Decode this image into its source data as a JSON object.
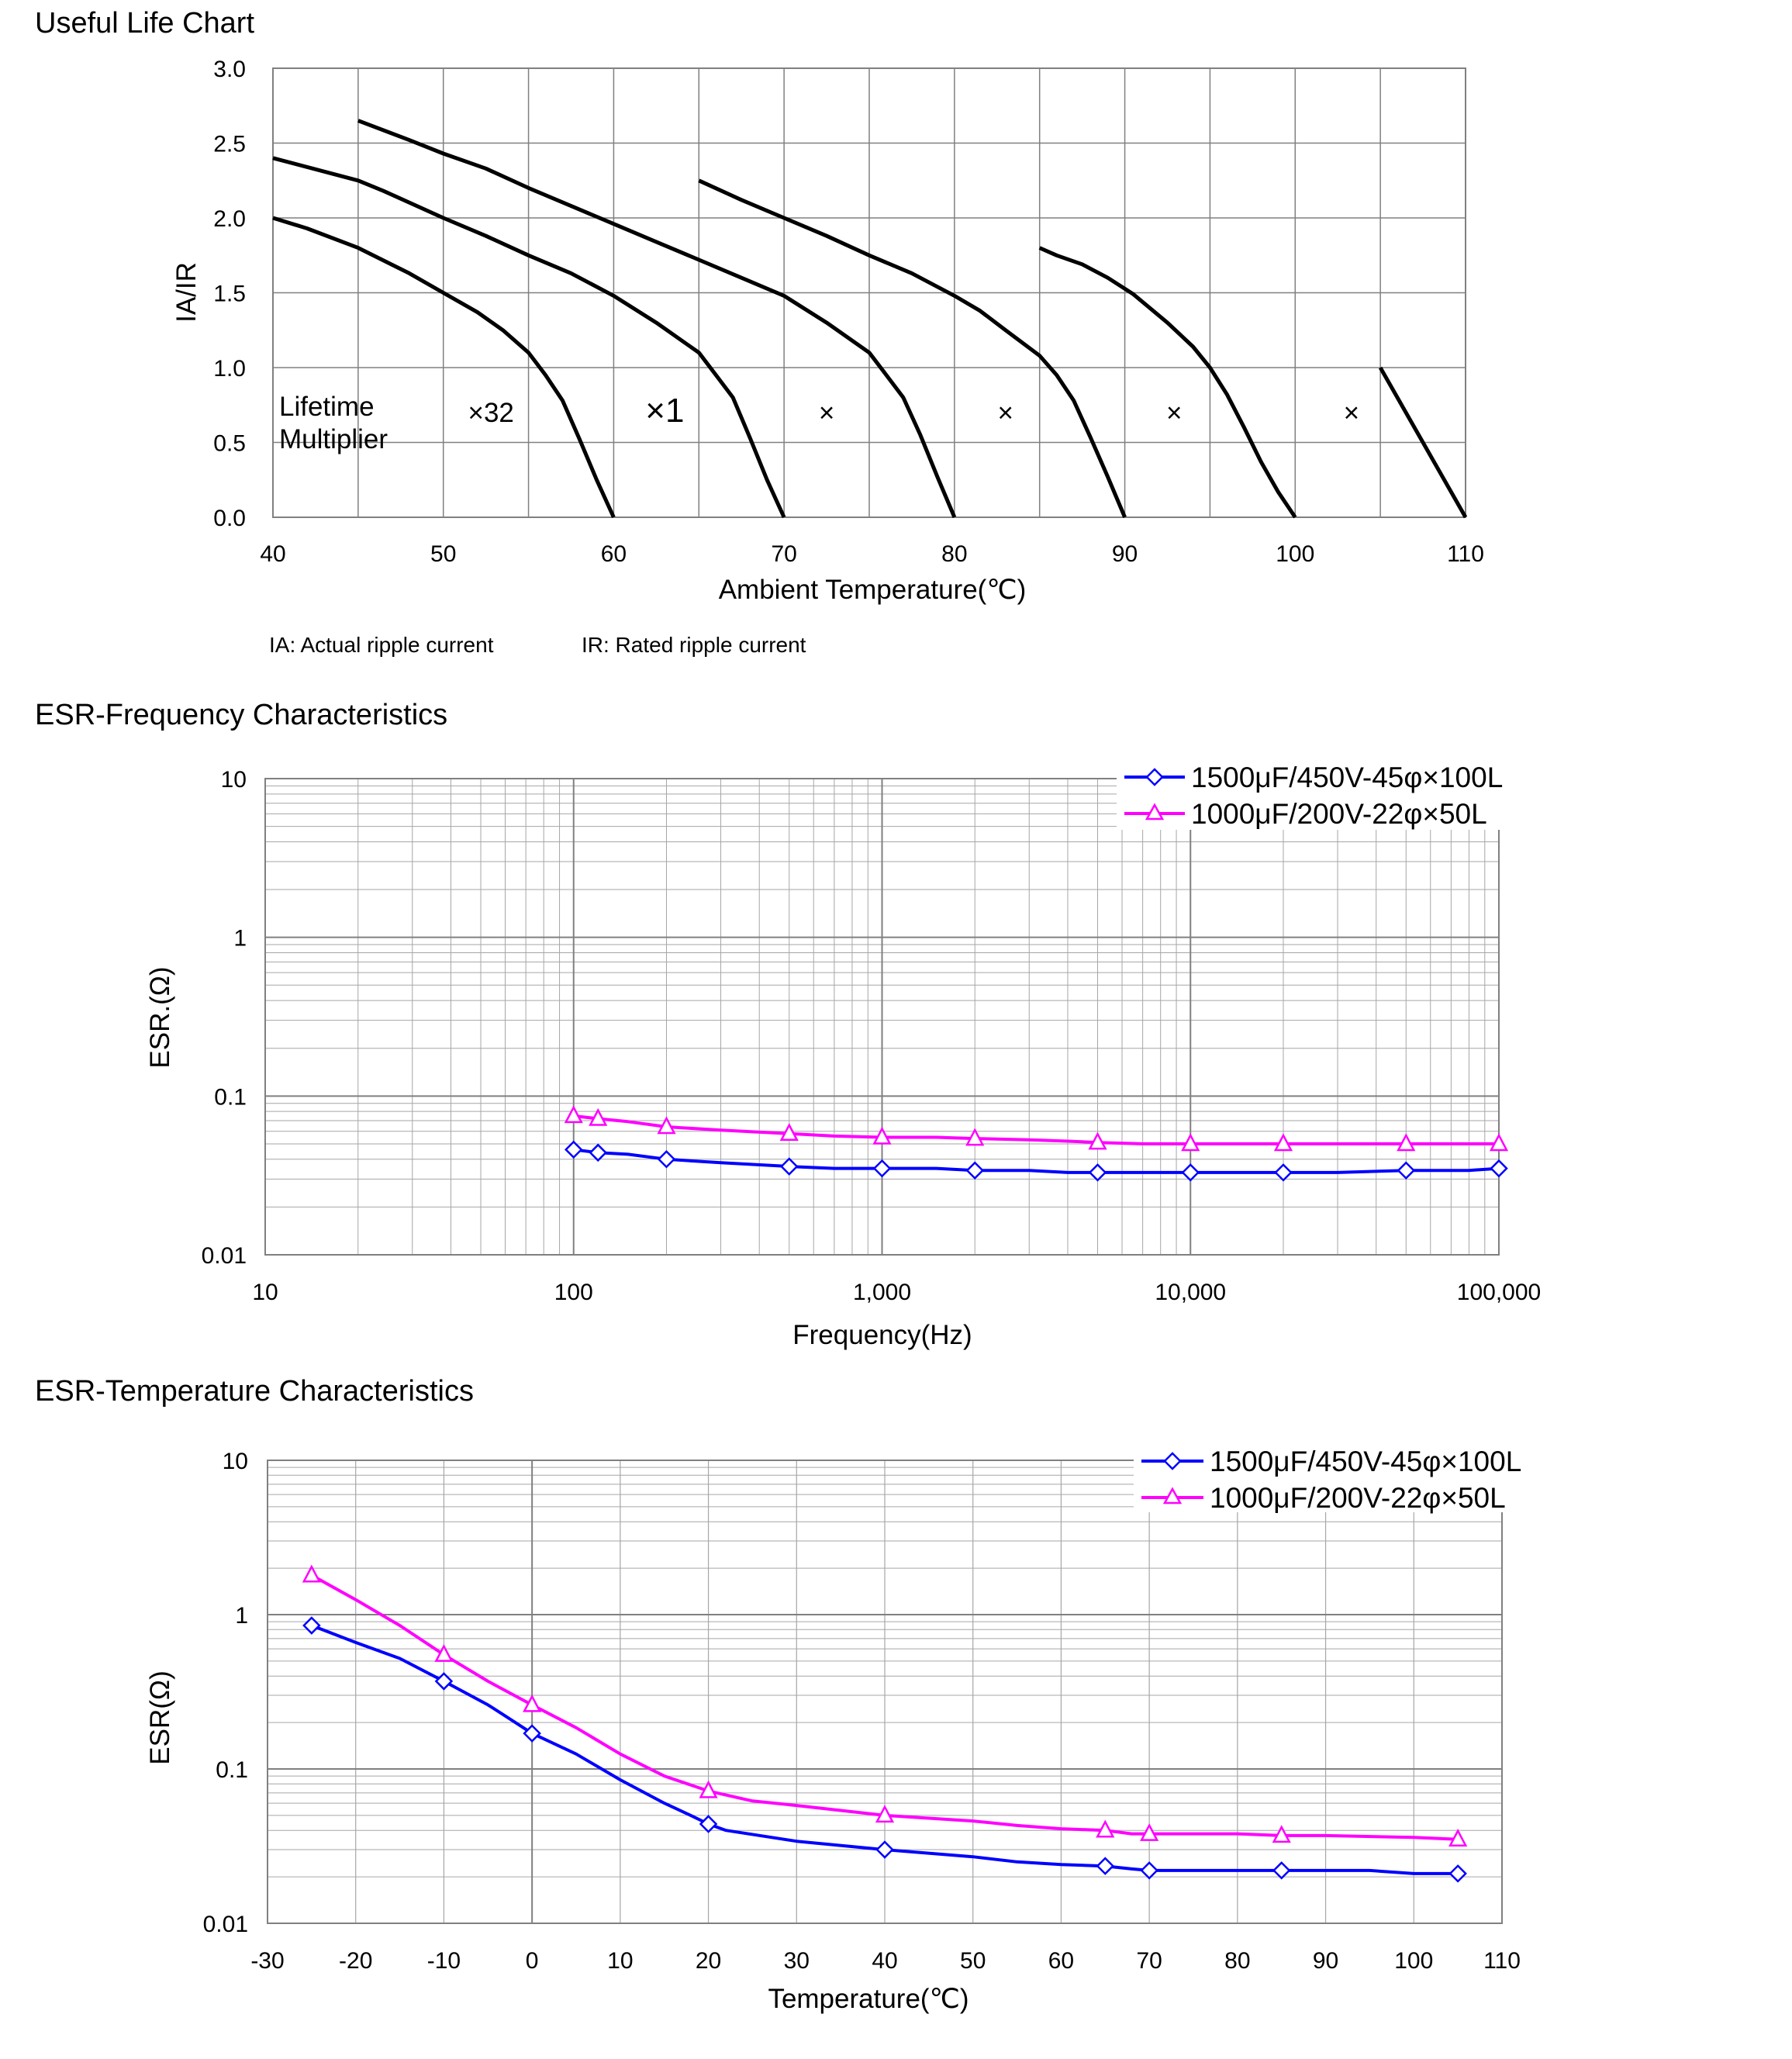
{
  "colors": {
    "blue": "#0000ff",
    "magenta": "#ff00ff",
    "grid": "#808080",
    "gridMinor": "#a6a6a6",
    "curve": "#000000"
  },
  "chart_data": [
    {
      "type": "line",
      "title": "Useful Life Chart",
      "xlabel": "Ambient Temperature(℃)",
      "ylabel": "IA/IR",
      "xlim": [
        40,
        110
      ],
      "ylim": [
        0,
        3.0
      ],
      "x_ticks": [
        "40",
        "50",
        "60",
        "70",
        "80",
        "90",
        "100",
        "110"
      ],
      "y_ticks": [
        "0.0",
        "0.5",
        "1.0",
        "1.5",
        "2.0",
        "2.5",
        "3.0"
      ],
      "grid": true,
      "notes": [
        "IA: Actual ripple current",
        "IR: Rated ripple current"
      ],
      "annotation_label": [
        "Lifetime",
        "Multiplier"
      ],
      "multiplier_labels": [
        {
          "text": "×32",
          "x": 52.8,
          "y": 0.7
        },
        {
          "text": "×1",
          "x": 63.0,
          "y": 0.7
        },
        {
          "text": "×",
          "x": 72.5,
          "y": 0.7
        },
        {
          "text": "×",
          "x": 83.0,
          "y": 0.7
        },
        {
          "text": "×",
          "x": 92.9,
          "y": 0.7
        },
        {
          "text": "×",
          "x": 103.3,
          "y": 0.7
        }
      ],
      "series": [
        {
          "points": [
            [
              40,
              2.0
            ],
            [
              42,
              1.93
            ],
            [
              45,
              1.8
            ],
            [
              48,
              1.63
            ],
            [
              50,
              1.5
            ],
            [
              52,
              1.37
            ],
            [
              53.5,
              1.25
            ],
            [
              55,
              1.1
            ],
            [
              56,
              0.95
            ],
            [
              57,
              0.78
            ],
            [
              58,
              0.52
            ],
            [
              59,
              0.25
            ],
            [
              60,
              0.0
            ]
          ]
        },
        {
          "points": [
            [
              40,
              2.4
            ],
            [
              45,
              2.25
            ],
            [
              46.5,
              2.18
            ],
            [
              50,
              2.0
            ],
            [
              52.5,
              1.88
            ],
            [
              55,
              1.75
            ],
            [
              57.5,
              1.63
            ],
            [
              60,
              1.48
            ],
            [
              62.5,
              1.3
            ],
            [
              65,
              1.1
            ],
            [
              66,
              0.95
            ],
            [
              67,
              0.8
            ],
            [
              68,
              0.53
            ],
            [
              69,
              0.25
            ],
            [
              70,
              0.0
            ]
          ]
        },
        {
          "points": [
            [
              45,
              2.65
            ],
            [
              48,
              2.52
            ],
            [
              50,
              2.43
            ],
            [
              52.5,
              2.33
            ],
            [
              55,
              2.2
            ],
            [
              57.5,
              2.08
            ],
            [
              60,
              1.96
            ],
            [
              62.5,
              1.84
            ],
            [
              65,
              1.72
            ],
            [
              67.5,
              1.6
            ],
            [
              70,
              1.48
            ],
            [
              72.5,
              1.3
            ],
            [
              75,
              1.1
            ],
            [
              76,
              0.95
            ],
            [
              77,
              0.8
            ],
            [
              78,
              0.55
            ],
            [
              79,
              0.27
            ],
            [
              80,
              0.0
            ]
          ]
        },
        {
          "points": [
            [
              65,
              2.25
            ],
            [
              67.5,
              2.12
            ],
            [
              70,
              2.0
            ],
            [
              72.5,
              1.88
            ],
            [
              75,
              1.75
            ],
            [
              77.5,
              1.63
            ],
            [
              80,
              1.48
            ],
            [
              81.5,
              1.38
            ],
            [
              83,
              1.25
            ],
            [
              85,
              1.08
            ],
            [
              86,
              0.95
            ],
            [
              87,
              0.78
            ],
            [
              88,
              0.53
            ],
            [
              89,
              0.27
            ],
            [
              90,
              0.0
            ]
          ]
        },
        {
          "points": [
            [
              85,
              1.8
            ],
            [
              86,
              1.75
            ],
            [
              87.5,
              1.69
            ],
            [
              89,
              1.6
            ],
            [
              90.5,
              1.49
            ],
            [
              92.5,
              1.3
            ],
            [
              94,
              1.14
            ],
            [
              95,
              1.0
            ],
            [
              96,
              0.82
            ],
            [
              97,
              0.6
            ],
            [
              98,
              0.37
            ],
            [
              99,
              0.17
            ],
            [
              100,
              0.0
            ]
          ]
        },
        {
          "points": [
            [
              105,
              1.0
            ],
            [
              110,
              0.0
            ]
          ]
        }
      ]
    },
    {
      "type": "line",
      "title": "ESR-Frequency Characteristics",
      "xlabel": "Frequency(Hz)",
      "ylabel": "ESR.(Ω)",
      "xscale": "log",
      "yscale": "log",
      "xlim": [
        10,
        100000
      ],
      "ylim": [
        0.01,
        10
      ],
      "x_ticks": [
        "10",
        "100",
        "1,000",
        "10,000",
        "100,000"
      ],
      "y_ticks": [
        "0.01",
        "0.1",
        "1",
        "10"
      ],
      "grid": true,
      "legend_position": "top-right",
      "series": [
        {
          "name": "1500μF/450V-45φ×100L",
          "color": "blue",
          "marker": "diamond",
          "line": [
            [
              100,
              0.046
            ],
            [
              120,
              0.044
            ],
            [
              150,
              0.043
            ],
            [
              200,
              0.04
            ],
            [
              300,
              0.038
            ],
            [
              500,
              0.036
            ],
            [
              700,
              0.035
            ],
            [
              1000,
              0.035
            ],
            [
              1500,
              0.035
            ],
            [
              2000,
              0.034
            ],
            [
              3000,
              0.034
            ],
            [
              4000,
              0.033
            ],
            [
              5000,
              0.033
            ],
            [
              10000,
              0.033
            ],
            [
              20000,
              0.033
            ],
            [
              30000,
              0.033
            ],
            [
              50000,
              0.034
            ],
            [
              80000,
              0.034
            ],
            [
              100000,
              0.035
            ]
          ],
          "markers": [
            [
              100,
              0.046
            ],
            [
              120,
              0.044
            ],
            [
              200,
              0.04
            ],
            [
              500,
              0.036
            ],
            [
              1000,
              0.035
            ],
            [
              2000,
              0.034
            ],
            [
              5000,
              0.033
            ],
            [
              10000,
              0.033
            ],
            [
              20000,
              0.033
            ],
            [
              50000,
              0.034
            ],
            [
              100000,
              0.035
            ]
          ]
        },
        {
          "name": "1000μF/200V-22φ×50L",
          "color": "magenta",
          "marker": "triangle",
          "line": [
            [
              100,
              0.075
            ],
            [
              120,
              0.072
            ],
            [
              150,
              0.069
            ],
            [
              200,
              0.064
            ],
            [
              300,
              0.061
            ],
            [
              500,
              0.058
            ],
            [
              700,
              0.056
            ],
            [
              1000,
              0.055
            ],
            [
              1500,
              0.055
            ],
            [
              2000,
              0.054
            ],
            [
              3000,
              0.053
            ],
            [
              4000,
              0.052
            ],
            [
              5000,
              0.051
            ],
            [
              7000,
              0.05
            ],
            [
              10000,
              0.05
            ],
            [
              20000,
              0.05
            ],
            [
              50000,
              0.05
            ],
            [
              100000,
              0.05
            ]
          ],
          "markers": [
            [
              100,
              0.075
            ],
            [
              120,
              0.072
            ],
            [
              200,
              0.064
            ],
            [
              500,
              0.058
            ],
            [
              1000,
              0.055
            ],
            [
              2000,
              0.054
            ],
            [
              5000,
              0.051
            ],
            [
              10000,
              0.05
            ],
            [
              20000,
              0.05
            ],
            [
              50000,
              0.05
            ],
            [
              100000,
              0.05
            ]
          ]
        }
      ]
    },
    {
      "type": "line",
      "title": "ESR-Temperature Characteristics",
      "xlabel": "Temperature(℃)",
      "ylabel": "ESR(Ω)",
      "yscale": "log",
      "xlim": [
        -30,
        110
      ],
      "ylim": [
        0.01,
        10
      ],
      "x_ticks": [
        "-30",
        "-20",
        "-10",
        "0",
        "10",
        "20",
        "30",
        "40",
        "50",
        "60",
        "70",
        "80",
        "90",
        "100",
        "110"
      ],
      "y_ticks": [
        "0.01",
        "0.1",
        "1",
        "10"
      ],
      "grid": true,
      "legend_position": "top-right",
      "series": [
        {
          "name": "1500μF/450V-45φ×100L",
          "color": "blue",
          "marker": "diamond",
          "line": [
            [
              -25,
              0.85
            ],
            [
              -20,
              0.66
            ],
            [
              -15,
              0.52
            ],
            [
              -10,
              0.37
            ],
            [
              -5,
              0.26
            ],
            [
              -3,
              0.22
            ],
            [
              0,
              0.17
            ],
            [
              5,
              0.125
            ],
            [
              10,
              0.085
            ],
            [
              15,
              0.06
            ],
            [
              18,
              0.05
            ],
            [
              20,
              0.044
            ],
            [
              22,
              0.04
            ],
            [
              30,
              0.034
            ],
            [
              40,
              0.03
            ],
            [
              50,
              0.027
            ],
            [
              55,
              0.025
            ],
            [
              60,
              0.024
            ],
            [
              65,
              0.0235
            ],
            [
              68,
              0.0225
            ],
            [
              70,
              0.022
            ],
            [
              80,
              0.022
            ],
            [
              90,
              0.022
            ],
            [
              95,
              0.022
            ],
            [
              100,
              0.021
            ],
            [
              105,
              0.021
            ]
          ],
          "markers": [
            [
              -25,
              0.85
            ],
            [
              -10,
              0.37
            ],
            [
              0,
              0.17
            ],
            [
              20,
              0.044
            ],
            [
              40,
              0.03
            ],
            [
              65,
              0.0235
            ],
            [
              70,
              0.022
            ],
            [
              85,
              0.022
            ],
            [
              105,
              0.021
            ]
          ]
        },
        {
          "name": "1000μF/200V-22φ×50L",
          "color": "magenta",
          "marker": "triangle",
          "line": [
            [
              -25,
              1.8
            ],
            [
              -20,
              1.25
            ],
            [
              -15,
              0.85
            ],
            [
              -10,
              0.55
            ],
            [
              -5,
              0.37
            ],
            [
              0,
              0.26
            ],
            [
              5,
              0.185
            ],
            [
              10,
              0.125
            ],
            [
              15,
              0.09
            ],
            [
              20,
              0.072
            ],
            [
              25,
              0.062
            ],
            [
              30,
              0.058
            ],
            [
              40,
              0.05
            ],
            [
              50,
              0.046
            ],
            [
              55,
              0.043
            ],
            [
              60,
              0.041
            ],
            [
              65,
              0.04
            ],
            [
              68,
              0.038
            ],
            [
              70,
              0.038
            ],
            [
              80,
              0.038
            ],
            [
              85,
              0.037
            ],
            [
              90,
              0.037
            ],
            [
              100,
              0.036
            ],
            [
              105,
              0.035
            ]
          ],
          "markers": [
            [
              -25,
              1.8
            ],
            [
              -10,
              0.55
            ],
            [
              0,
              0.26
            ],
            [
              20,
              0.072
            ],
            [
              40,
              0.05
            ],
            [
              65,
              0.04
            ],
            [
              70,
              0.038
            ],
            [
              85,
              0.037
            ],
            [
              105,
              0.035
            ]
          ]
        }
      ]
    }
  ]
}
